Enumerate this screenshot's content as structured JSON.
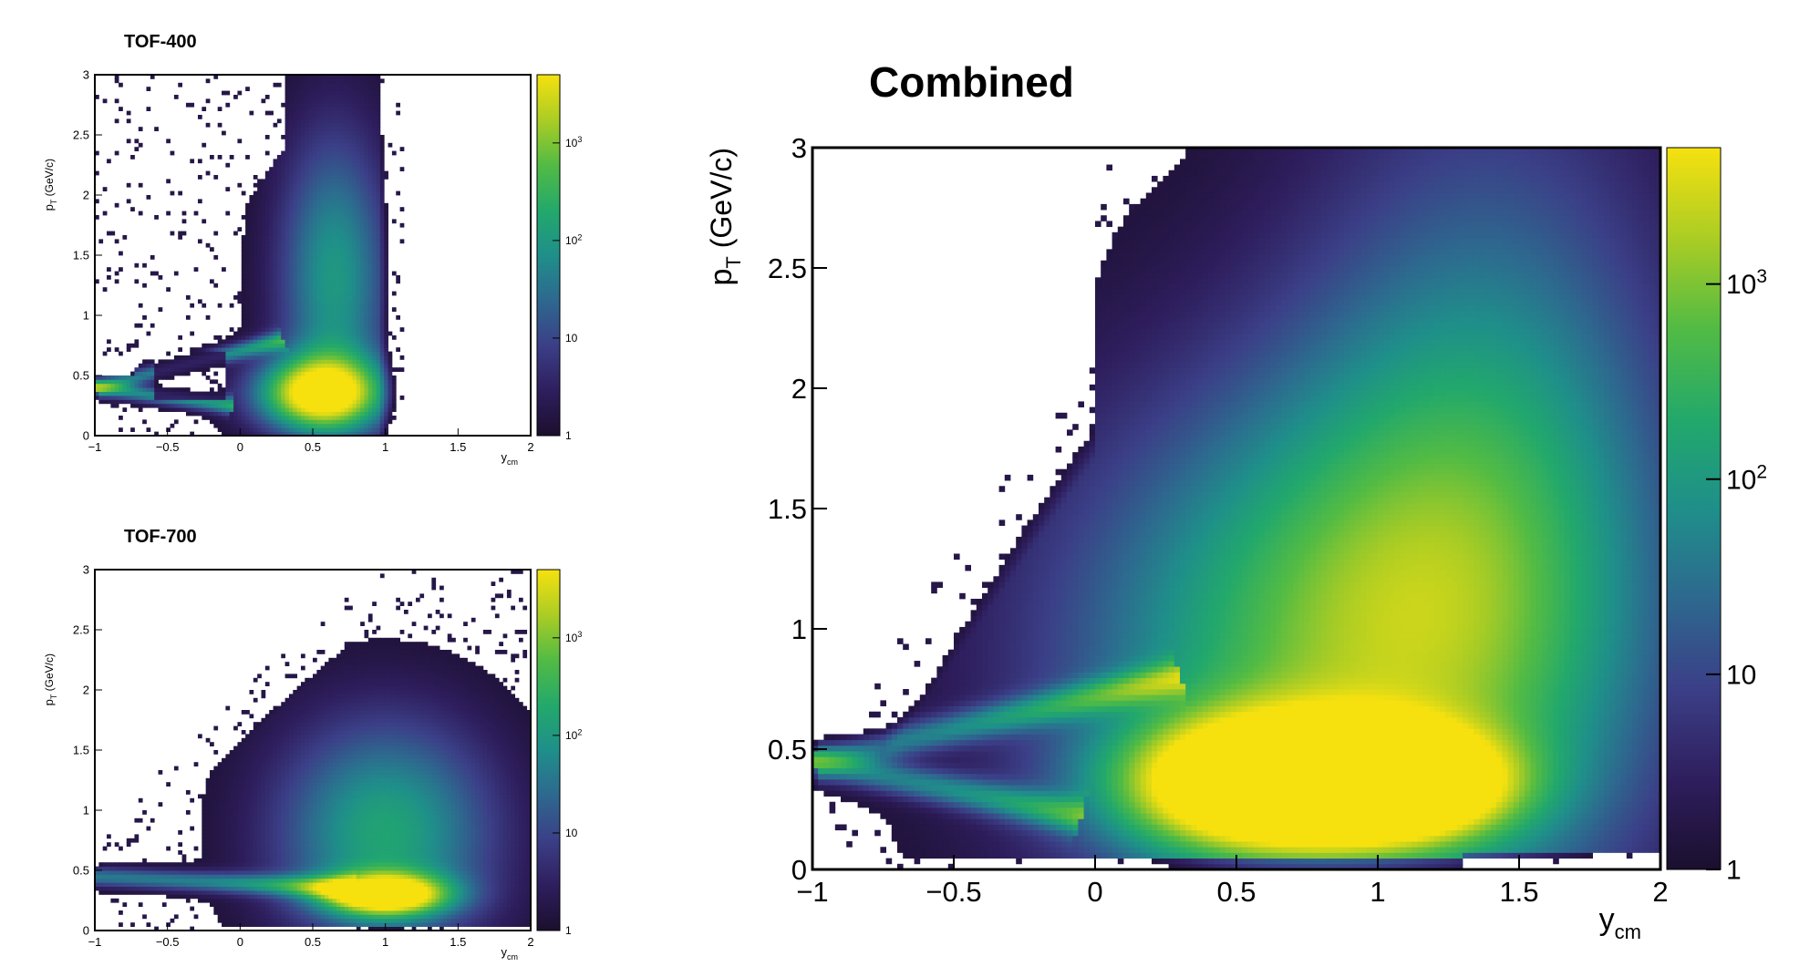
{
  "chart_data": [
    {
      "type": "heatmap",
      "id": "tof400",
      "title": "TOF-400",
      "xlabel": "y",
      "xlabel_sub": "cm",
      "ylabel": "p",
      "ylabel_sub": "T",
      "ylabel_unit": " (GeV/c)",
      "xlim": [
        -1,
        2
      ],
      "ylim": [
        0,
        3
      ],
      "xticks": [
        -1,
        -0.5,
        0,
        0.5,
        1,
        1.5,
        2
      ],
      "yticks": [
        0,
        0.5,
        1,
        1.5,
        2,
        2.5,
        3
      ],
      "zscale": "log",
      "zlim": [
        1,
        5000
      ],
      "zticks": [
        {
          "v": 1,
          "b": "1",
          "e": ""
        },
        {
          "v": 10,
          "b": "10",
          "e": ""
        },
        {
          "v": 100,
          "b": "10",
          "e": "2"
        },
        {
          "v": 1000,
          "b": "10",
          "e": "3"
        }
      ],
      "colormap": "viridis",
      "grid": false,
      "legend": "colorbar-right"
    },
    {
      "type": "heatmap",
      "id": "tof700",
      "title": "TOF-700",
      "xlabel": "y",
      "xlabel_sub": "cm",
      "ylabel": "p",
      "ylabel_sub": "T",
      "ylabel_unit": " (GeV/c)",
      "xlim": [
        -1,
        2
      ],
      "ylim": [
        0,
        3
      ],
      "xticks": [
        -1,
        -0.5,
        0,
        0.5,
        1,
        1.5,
        2
      ],
      "yticks": [
        0,
        0.5,
        1,
        1.5,
        2,
        2.5,
        3
      ],
      "zscale": "log",
      "zlim": [
        1,
        5000
      ],
      "zticks": [
        {
          "v": 1,
          "b": "1",
          "e": ""
        },
        {
          "v": 10,
          "b": "10",
          "e": ""
        },
        {
          "v": 100,
          "b": "10",
          "e": "2"
        },
        {
          "v": 1000,
          "b": "10",
          "e": "3"
        }
      ],
      "colormap": "viridis",
      "grid": false,
      "legend": "colorbar-right"
    },
    {
      "type": "heatmap",
      "id": "combined",
      "title": "Combined",
      "xlabel": "y",
      "xlabel_sub": "cm",
      "ylabel": "p",
      "ylabel_sub": "T",
      "ylabel_unit": " (GeV/c)",
      "xlim": [
        -1,
        2
      ],
      "ylim": [
        0,
        3
      ],
      "xticks": [
        -1,
        -0.5,
        0,
        0.5,
        1,
        1.5,
        2
      ],
      "yticks": [
        0,
        0.5,
        1,
        1.5,
        2,
        2.5,
        3
      ],
      "zscale": "log",
      "zlim": [
        1,
        5000
      ],
      "zticks": [
        {
          "v": 1,
          "b": "1",
          "e": ""
        },
        {
          "v": 10,
          "b": "10",
          "e": ""
        },
        {
          "v": 100,
          "b": "10",
          "e": "2"
        },
        {
          "v": 1000,
          "b": "10",
          "e": "3"
        }
      ],
      "colormap": "viridis",
      "grid": false,
      "legend": "colorbar-right"
    }
  ]
}
